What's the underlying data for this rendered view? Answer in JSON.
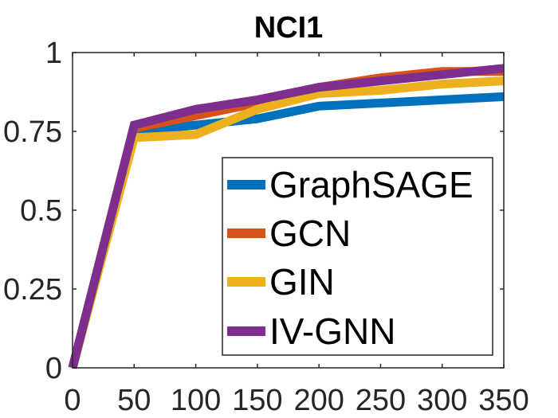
{
  "chart_data": {
    "type": "line",
    "title": "NCI1",
    "xlabel": "",
    "ylabel": "",
    "xlim": [
      0,
      350
    ],
    "ylim": [
      0,
      1
    ],
    "xticks": [
      0,
      50,
      100,
      150,
      200,
      250,
      300,
      350
    ],
    "yticks": [
      0,
      0.25,
      0.5,
      0.75,
      1
    ],
    "xtick_labels": [
      "0",
      "50",
      "100",
      "150",
      "200",
      "250",
      "300",
      "350"
    ],
    "ytick_labels": [
      "0",
      "0.25",
      "0.5",
      "0.75",
      "1"
    ],
    "x": [
      0,
      50,
      100,
      150,
      200,
      250,
      300,
      350
    ],
    "series": [
      {
        "name": "GraphSAGE",
        "color": "#0072BD",
        "values": [
          0,
          0.75,
          0.77,
          0.79,
          0.83,
          0.84,
          0.85,
          0.86
        ]
      },
      {
        "name": "GCN",
        "color": "#D95319",
        "values": [
          0,
          0.76,
          0.8,
          0.84,
          0.89,
          0.92,
          0.94,
          0.94
        ]
      },
      {
        "name": "GIN",
        "color": "#EDB120",
        "values": [
          0,
          0.73,
          0.74,
          0.82,
          0.87,
          0.88,
          0.9,
          0.91
        ]
      },
      {
        "name": "IV-GNN",
        "color": "#7E2F8E",
        "values": [
          0,
          0.77,
          0.82,
          0.85,
          0.89,
          0.91,
          0.93,
          0.95
        ]
      }
    ],
    "grid": false,
    "legend_position": "bottom-right"
  }
}
